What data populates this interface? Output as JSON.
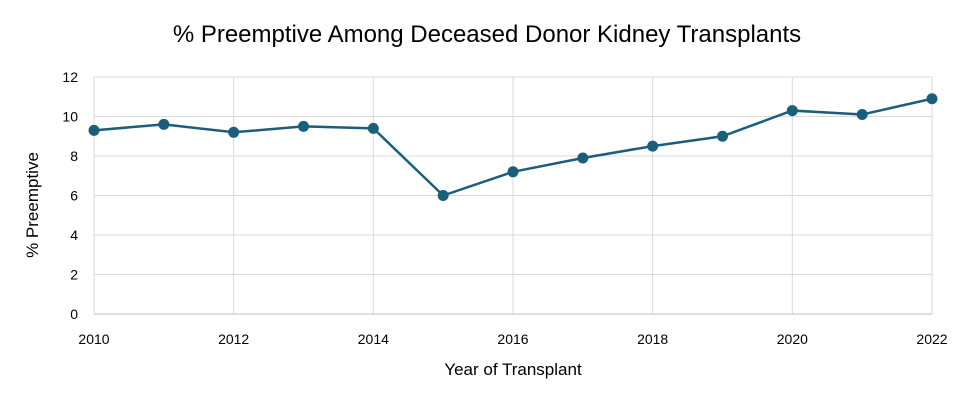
{
  "chart_data": {
    "type": "line",
    "title": "% Preemptive Among Deceased Donor Kidney Transplants",
    "xlabel": "Year of Transplant",
    "ylabel": "% Preemptive",
    "x": [
      2010,
      2011,
      2012,
      2013,
      2014,
      2015,
      2016,
      2017,
      2018,
      2019,
      2020,
      2021,
      2022
    ],
    "series": [
      {
        "values": [
          9.3,
          9.6,
          9.2,
          9.5,
          9.4,
          6.0,
          7.2,
          7.9,
          8.5,
          9.0,
          10.3,
          10.1,
          10.9
        ]
      }
    ],
    "xlim": [
      2010,
      2022
    ],
    "ylim": [
      0,
      12
    ],
    "x_ticks": [
      "2010",
      "2012",
      "2014",
      "2016",
      "2018",
      "2020",
      "2022"
    ],
    "x_tick_values": [
      2010,
      2012,
      2014,
      2016,
      2018,
      2020,
      2022
    ],
    "y_ticks": [
      "0",
      "2",
      "4",
      "6",
      "8",
      "10",
      "12"
    ],
    "y_tick_values": [
      0,
      2,
      4,
      6,
      8,
      10,
      12
    ],
    "x_grid_values": [
      2010,
      2012,
      2014,
      2016,
      2018,
      2020,
      2022
    ],
    "grid": true,
    "legend": "none",
    "colors": {
      "series": "#1b5e7b",
      "grid": "#d9d9d9"
    }
  }
}
